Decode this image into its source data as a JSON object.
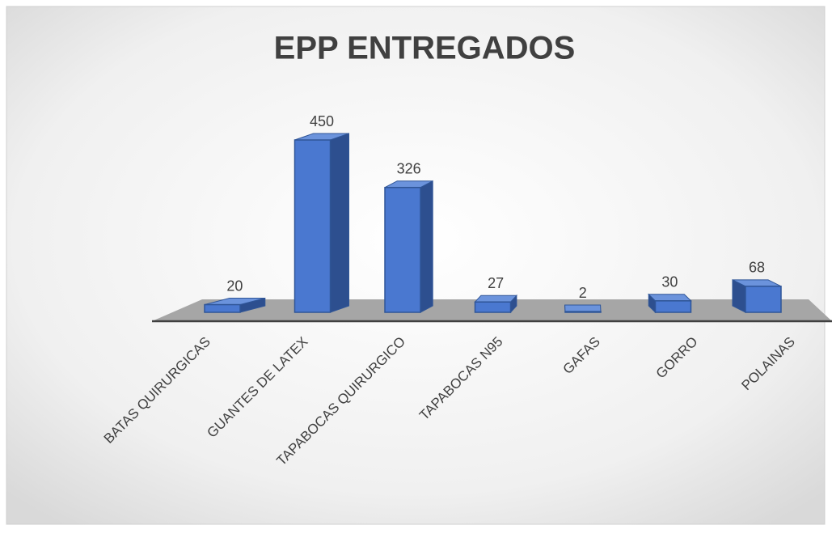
{
  "chart_data": {
    "type": "bar3d",
    "title": "EPP ENTREGADOS",
    "categories": [
      "BATAS QUIRURGICAS",
      "GUANTES DE LATEX",
      "TAPABOCAS QUIRURGICO",
      "TAPABOCAS N95",
      "GAFAS",
      "GORRO",
      "POLAINAS"
    ],
    "values": [
      20,
      450,
      326,
      27,
      2,
      30,
      68
    ],
    "color": "#4a78d0"
  }
}
